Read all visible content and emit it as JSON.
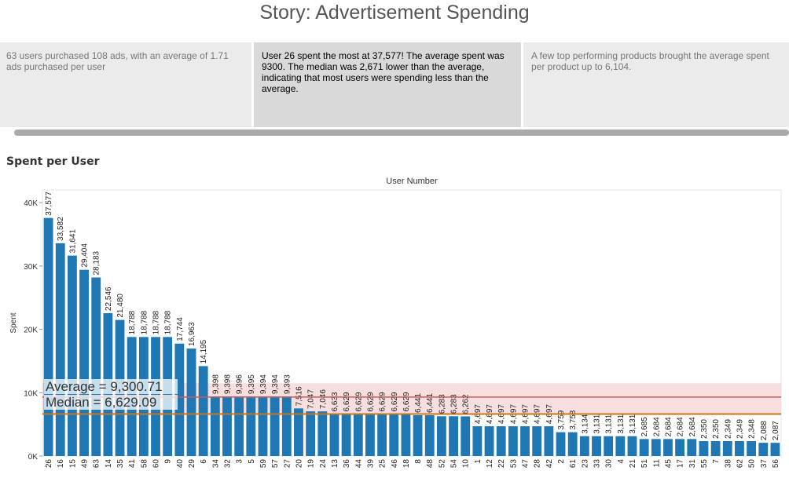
{
  "story": {
    "title": "Story: Advertisement Spending",
    "points": [
      {
        "text": "63 users purchased 108 ads, with an average of 1.71 ads purchased per user",
        "active": false
      },
      {
        "text": "User 26 spent the most at 37,577!  The average spent was 9300.  The median was 2,671 lower than the average, indicating that most users were spending less than the average.",
        "active": true
      },
      {
        "text": "A few top performing products brought the average spent per product up to 6,104.",
        "active": false
      }
    ]
  },
  "sheet": {
    "title": "Spent per User"
  },
  "colors": {
    "bar": "#1f77b4",
    "average_line": "#c85a5a",
    "median_line": "#c8751a",
    "band": "#f5d4d4"
  },
  "chart_data": {
    "type": "bar",
    "title": "Spent per User",
    "xlabel": "User Number",
    "ylabel": "Spent",
    "ylim": [
      0,
      42000
    ],
    "yticks": [
      0,
      10000,
      20000,
      30000,
      40000
    ],
    "ytick_labels": [
      "0K",
      "10K",
      "20K",
      "30K",
      "40K"
    ],
    "categories": [
      "26",
      "16",
      "15",
      "49",
      "63",
      "14",
      "35",
      "41",
      "58",
      "60",
      "9",
      "40",
      "29",
      "6",
      "34",
      "32",
      "3",
      "5",
      "59",
      "57",
      "27",
      "20",
      "19",
      "24",
      "13",
      "36",
      "44",
      "39",
      "25",
      "46",
      "18",
      "8",
      "48",
      "52",
      "54",
      "10",
      "1",
      "12",
      "22",
      "53",
      "47",
      "28",
      "42",
      "2",
      "61",
      "23",
      "33",
      "30",
      "4",
      "21",
      "51",
      "11",
      "45",
      "17",
      "31",
      "55",
      "7",
      "38",
      "62",
      "50",
      "37",
      "56"
    ],
    "values": [
      37577,
      33582,
      31641,
      29404,
      28183,
      22546,
      21480,
      18788,
      18788,
      18788,
      18788,
      17744,
      16963,
      14195,
      9398,
      9398,
      9396,
      9395,
      9394,
      9394,
      9393,
      7516,
      7047,
      7046,
      6633,
      6629,
      6629,
      6629,
      6629,
      6629,
      6629,
      6441,
      6441,
      6283,
      6283,
      6262,
      4697,
      4697,
      4697,
      4697,
      4697,
      4697,
      4697,
      3759,
      3758,
      3134,
      3131,
      3131,
      3131,
      3131,
      2685,
      2684,
      2684,
      2684,
      2684,
      2350,
      2350,
      2349,
      2349,
      2348,
      2088,
      2087
    ],
    "data_labels": [
      "37,577",
      "33,582",
      "31,641",
      "29,404",
      "28,183",
      "22,546",
      "21,480",
      "18,788",
      "18,788",
      "18,788",
      "18,788",
      "17,744",
      "16,963",
      "14,195",
      "9,398",
      "9,398",
      "9,396",
      "9,395",
      "9,394",
      "9,394",
      "9,393",
      "7,516",
      "7,047",
      "7,046",
      "6,633",
      "6,629",
      "6,629",
      "6,629",
      "6,629",
      "6,629",
      "6,629",
      "6,441",
      "6,441",
      "6,283",
      "6,283",
      "6,262",
      "4,697",
      "4,697",
      "4,697",
      "4,697",
      "4,697",
      "4,697",
      "4,697",
      "3,759",
      "3,758",
      "3,134",
      "3,131",
      "3,131",
      "3,131",
      "3,131",
      "2,685",
      "2,684",
      "2,684",
      "2,684",
      "2,684",
      "2,350",
      "2,350",
      "2,349",
      "2,349",
      "2,348",
      "2,088",
      "2,087"
    ],
    "reference_lines": [
      {
        "label": "Average = 9,300.71",
        "value": 9300.71
      },
      {
        "label": "Median = 6,629.09",
        "value": 6629.09
      }
    ],
    "band": [
      6629.09,
      11500
    ],
    "grid": false
  }
}
